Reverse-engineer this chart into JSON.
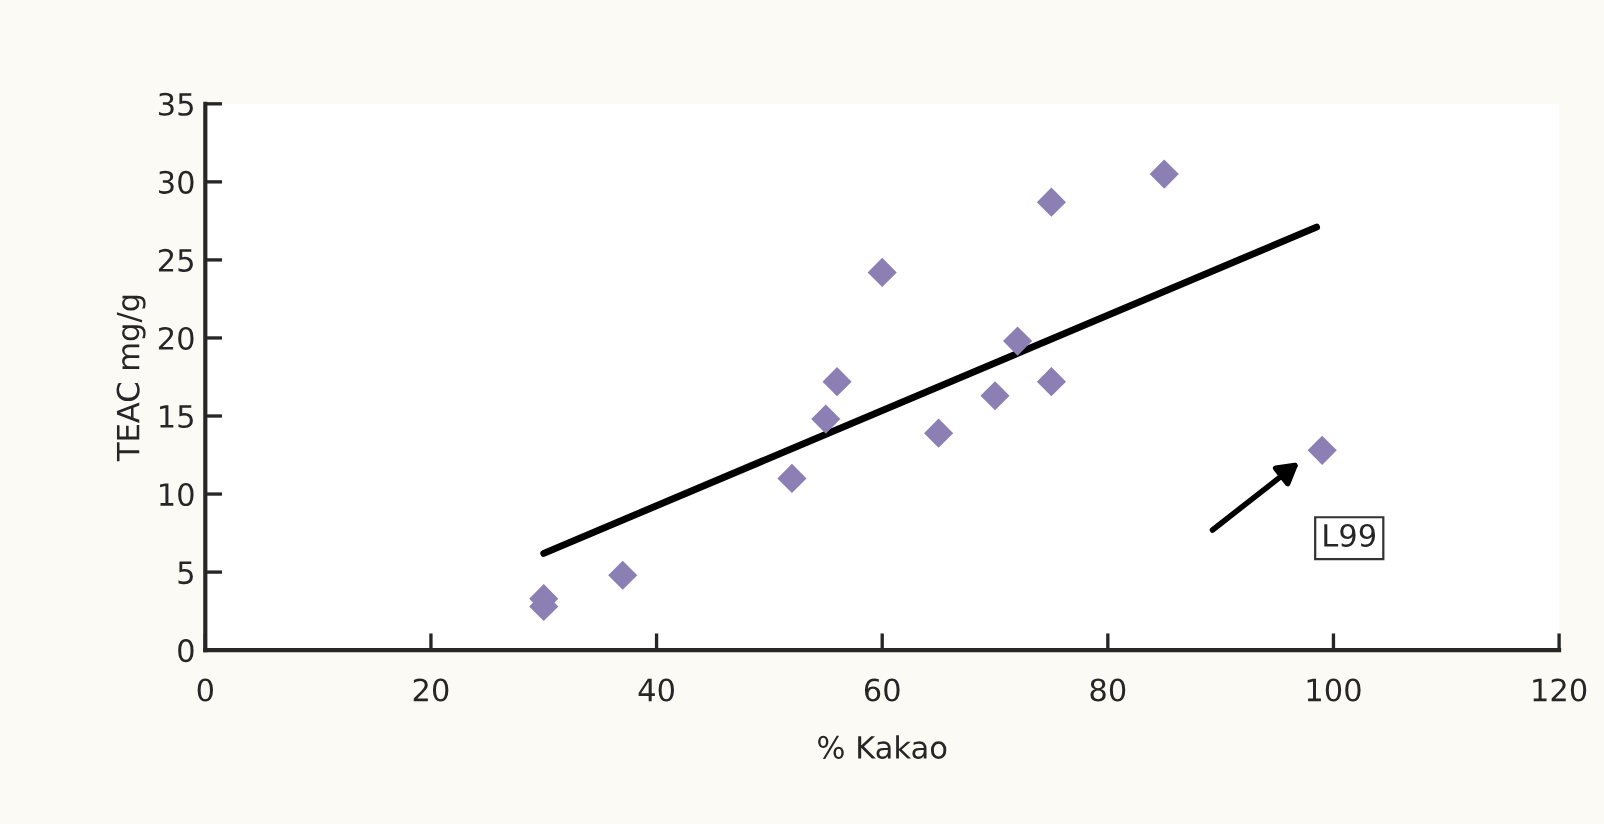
{
  "chart_data": {
    "type": "scatter",
    "xlabel": "% Kakao",
    "ylabel": "TEAC mg/g",
    "series": [
      {
        "type": "scatter",
        "color": "#8b7fb3",
        "marker": "diamond",
        "x": [
          30,
          30,
          37,
          52,
          55,
          56,
          60,
          65,
          70,
          72,
          75,
          75,
          85,
          99
        ],
        "values": [
          3.3,
          2.8,
          4.8,
          11,
          14.8,
          17.2,
          24.2,
          13.9,
          16.3,
          19.8,
          17.2,
          28.7,
          30.5,
          12.8
        ]
      },
      {
        "type": "line",
        "color": "#000000",
        "marker": "none",
        "x": [
          30,
          98.5
        ],
        "values": [
          6.2,
          27.1
        ]
      }
    ],
    "annotations": [
      "L99"
    ],
    "xlim": [
      0,
      120
    ],
    "xticks": [
      0,
      20,
      40,
      60,
      80,
      100,
      120
    ],
    "ylim": [
      0,
      35
    ],
    "yticks": [
      0,
      5,
      10,
      15,
      20,
      25,
      30,
      35
    ],
    "grid": false,
    "legend": false
  }
}
